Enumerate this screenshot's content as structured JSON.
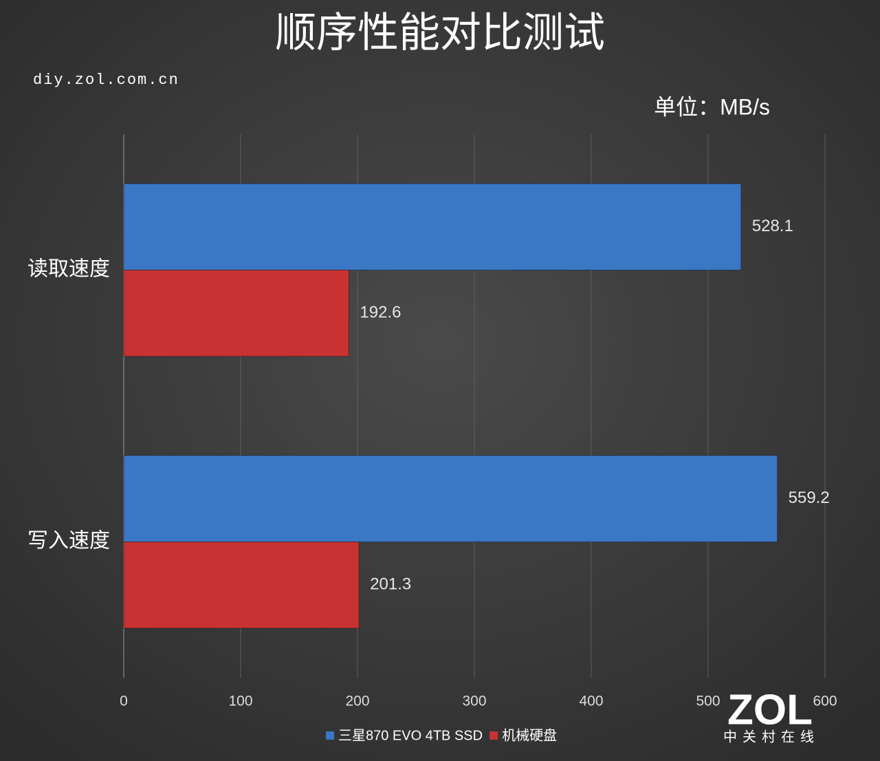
{
  "chart_data": {
    "type": "hbar",
    "title": "顺序性能对比测试",
    "subtitle": "diy.zol.com.cn",
    "unit_label": "单位：MB/s",
    "watermark": {
      "logo": "ZOL",
      "text": "中关村在线"
    },
    "categories": [
      "读取速度",
      "写入速度"
    ],
    "series": [
      {
        "name": "三星870 EVO 4TB SSD",
        "color": "#3a78c6",
        "values": [
          528.1,
          559.2
        ]
      },
      {
        "name": "机械硬盘",
        "color": "#c83232",
        "values": [
          192.6,
          201.3
        ]
      }
    ],
    "xlim": [
      0,
      600
    ],
    "xticks": [
      0,
      100,
      200,
      300,
      400,
      500,
      600
    ],
    "grid": true,
    "legend": "bottom"
  }
}
